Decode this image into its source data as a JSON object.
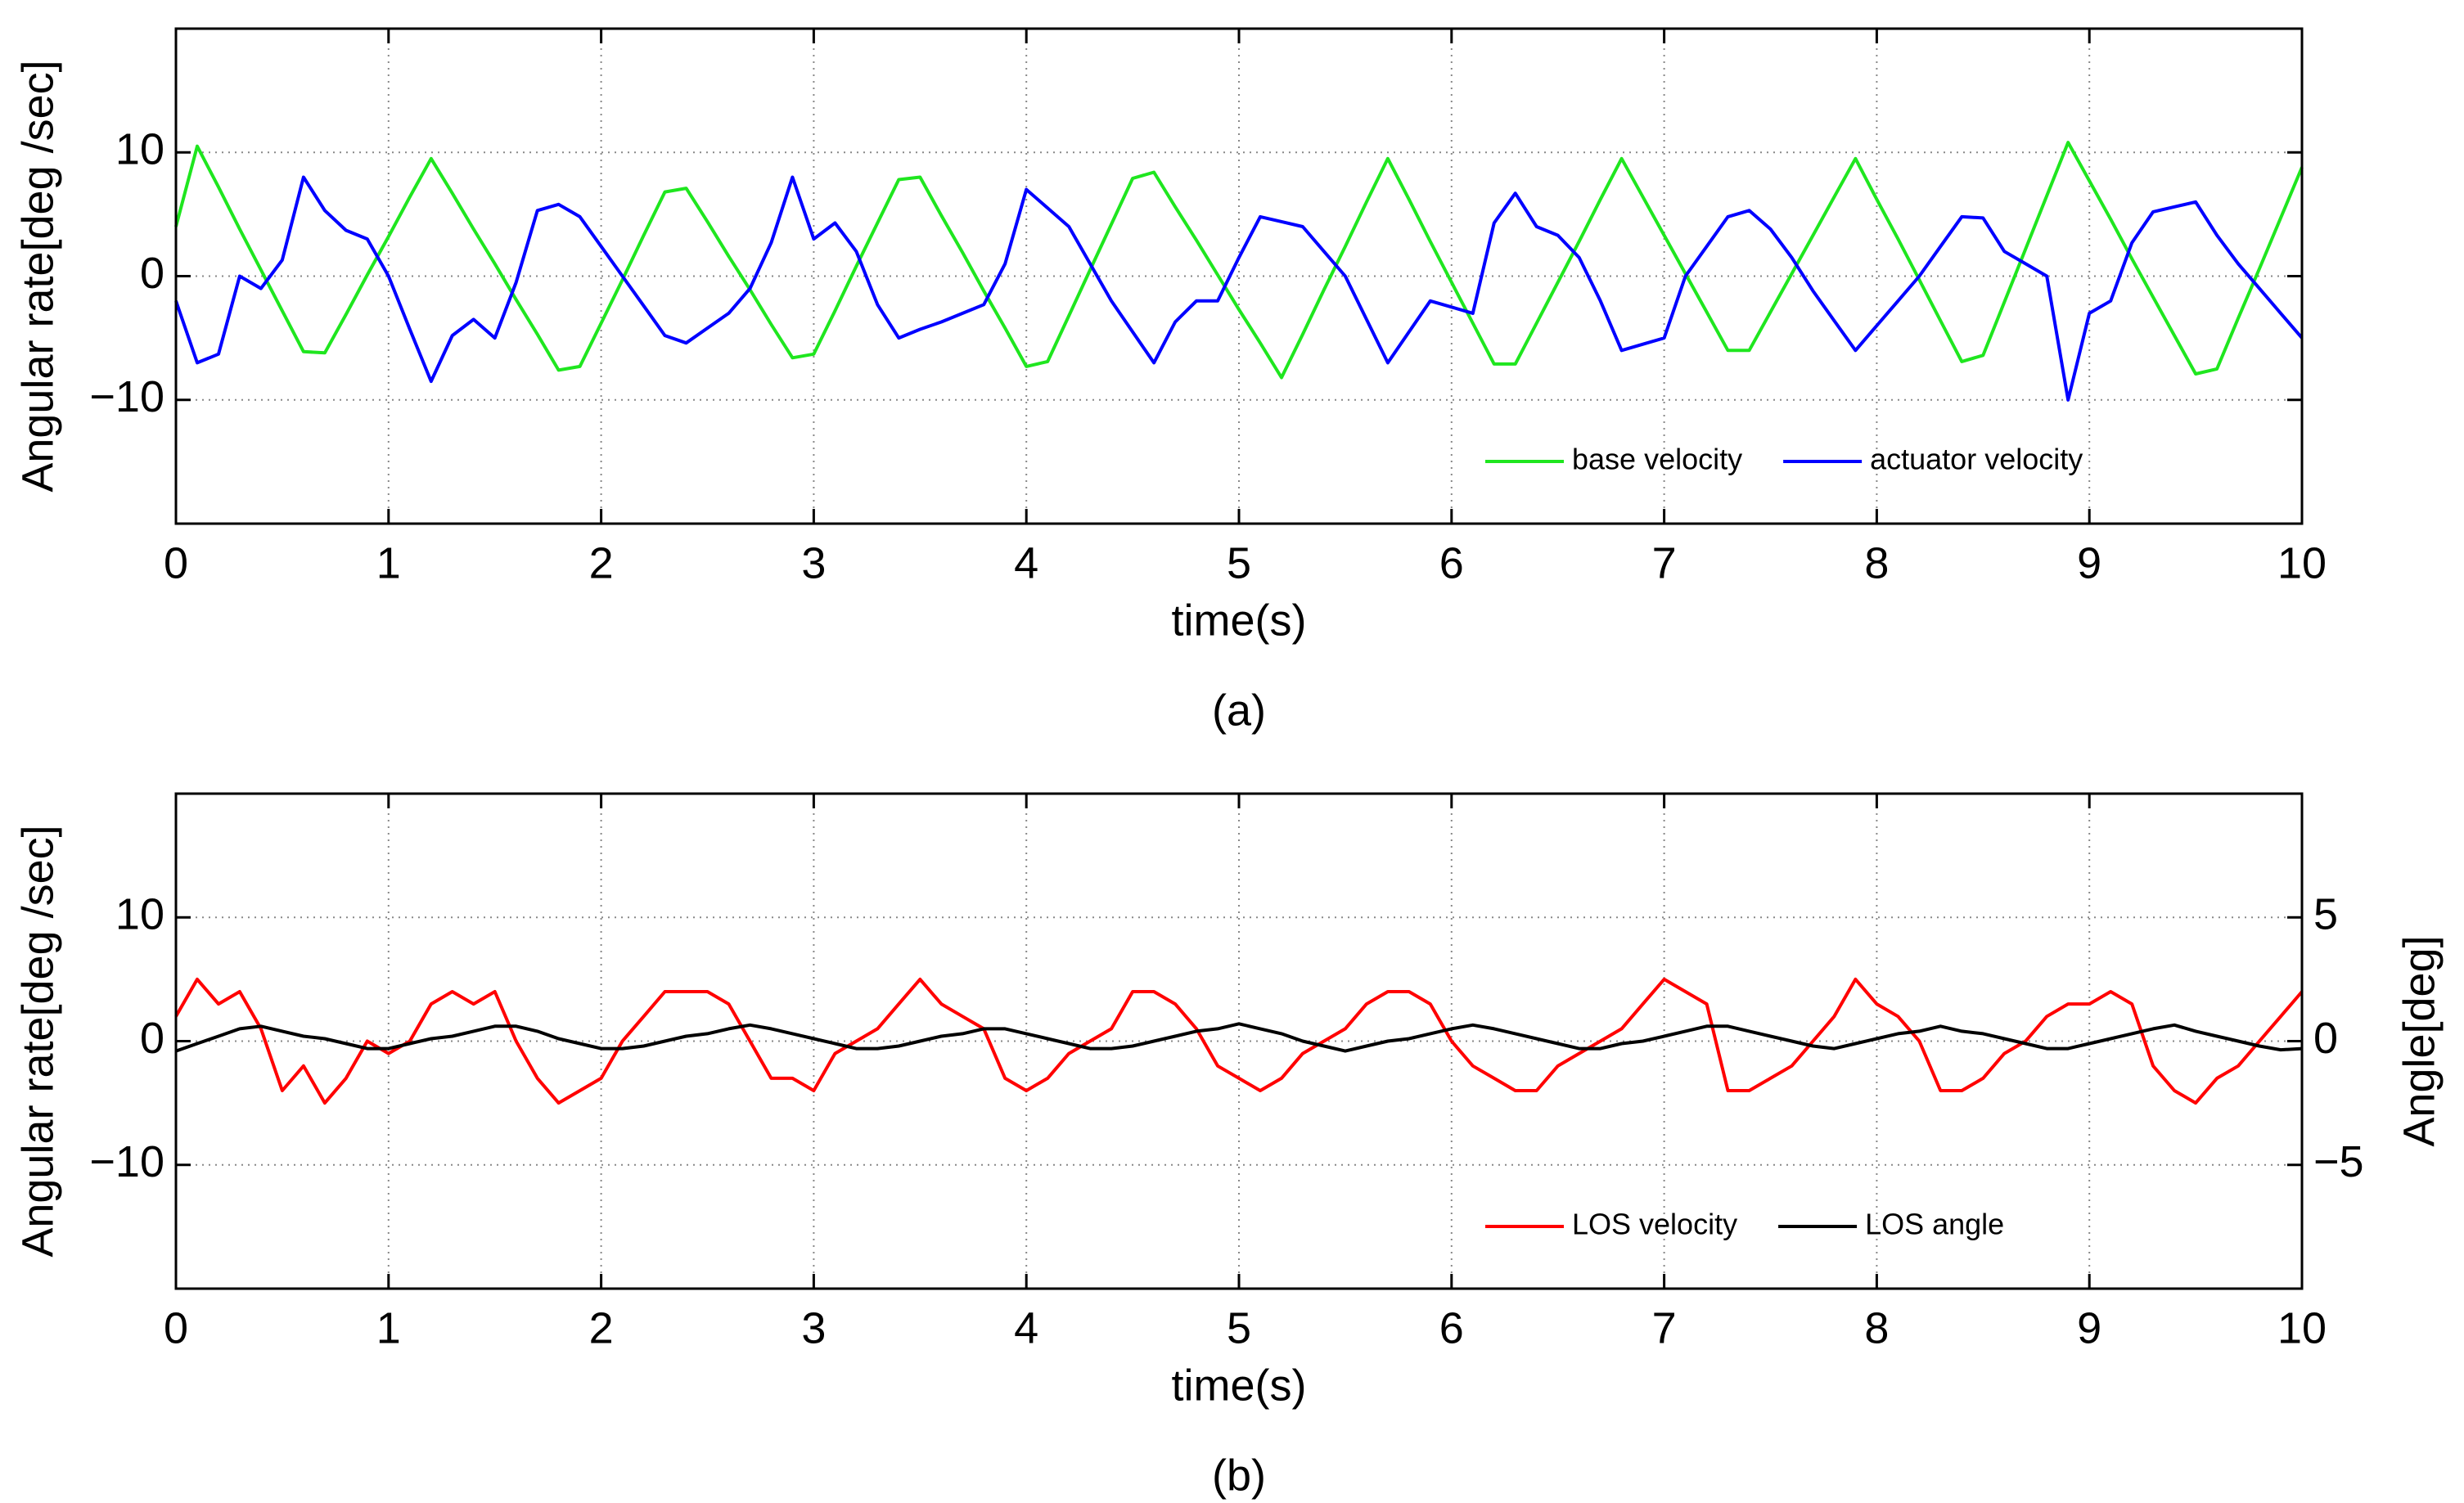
{
  "chart_data": [
    {
      "type": "line",
      "caption": "(a)",
      "xlabel": "time(s)",
      "ylabel": "Angular rate[deg /sec]",
      "xlim": [
        0,
        10
      ],
      "xticks": [
        0,
        1,
        2,
        3,
        4,
        5,
        6,
        7,
        8,
        9,
        10
      ],
      "ylim": [
        -20,
        20
      ],
      "yticks": [
        {
          "value": -10,
          "label": "−10"
        },
        0,
        10
      ],
      "grid": true,
      "legend": "lower right",
      "x": [
        0,
        0.1,
        0.2,
        0.3,
        0.4,
        0.5,
        0.6,
        0.7,
        0.8,
        0.9,
        1,
        1.1,
        1.2,
        1.3,
        1.4,
        1.5,
        1.6,
        1.7,
        1.8,
        1.9,
        2,
        2.1,
        2.2,
        2.3,
        2.4,
        2.5,
        2.6,
        2.7,
        2.8,
        2.9,
        3,
        3.1,
        3.2,
        3.3,
        3.4,
        3.5,
        3.6,
        3.7,
        3.8,
        3.9,
        4,
        4.1,
        4.2,
        4.3,
        4.4,
        4.5,
        4.6,
        4.7,
        4.8,
        4.9,
        5,
        5.1,
        5.2,
        5.3,
        5.4,
        5.5,
        5.6,
        5.7,
        5.8,
        5.9,
        6,
        6.1,
        6.2,
        6.3,
        6.4,
        6.5,
        6.6,
        6.7,
        6.8,
        6.9,
        7,
        7.1,
        7.2,
        7.3,
        7.4,
        7.5,
        7.6,
        7.7,
        7.8,
        7.9,
        8,
        8.1,
        8.2,
        8.3,
        8.4,
        8.5,
        8.6,
        8.7,
        8.8,
        8.9,
        9,
        9.1,
        9.2,
        9.3,
        9.4,
        9.5,
        9.6,
        9.7,
        9.8,
        9.9,
        10
      ],
      "series": [
        {
          "name": "base velocity",
          "color": "#1fe61f",
          "values": [
            4,
            10.5,
            7.2,
            3.8,
            0.5,
            -2.8,
            -6.1,
            -6.2,
            -3.1,
            0.1,
            3.2,
            6.4,
            9.5,
            6.7,
            3.8,
            1.0,
            -1.9,
            -4.7,
            -7.6,
            -7.3,
            -3.8,
            -0.3,
            3.3,
            6.8,
            7.1,
            4.4,
            1.6,
            -1.1,
            -3.9,
            -6.6,
            -6.3,
            -2.8,
            0.8,
            4.3,
            7.8,
            8.0,
            4.9,
            1.9,
            -1.2,
            -4.2,
            -7.3,
            -6.9,
            -3.2,
            0.5,
            4.2,
            7.9,
            8.4,
            5.6,
            2.9,
            0.1,
            -2.7,
            -5.4,
            -8.2,
            -4.7,
            -1.1,
            2.4,
            6.0,
            9.5,
            6.2,
            2.8,
            -0.5,
            -3.8,
            -7.1,
            -7.1,
            -3.8,
            -0.5,
            2.8,
            6.2,
            9.5,
            6.4,
            3.3,
            0.2,
            -2.9,
            -6.0,
            -6.0,
            -2.9,
            0.2,
            3.3,
            6.4,
            9.5,
            6.2,
            3.0,
            -0.3,
            -3.6,
            -6.9,
            -6.4,
            -2.1,
            2.2,
            6.5,
            10.8,
            7.7,
            4.6,
            1.4,
            -1.7,
            -4.8,
            -7.9,
            -7.5,
            -3.4,
            0.6,
            4.7,
            8.8
          ]
        },
        {
          "name": "actuator velocity",
          "color": "#0000ff",
          "values": [
            -2,
            -7,
            -6.3,
            0,
            -1,
            1.3,
            8,
            5.3,
            3.7,
            3,
            0,
            -4.3,
            -8.5,
            -4.8,
            -3.5,
            -5,
            -0.5,
            5.3,
            5.8,
            4.8,
            2.4,
            0,
            -2.4,
            -4.8,
            -5.4,
            -4.2,
            -3,
            -1,
            2.7,
            8,
            3,
            4.3,
            2,
            -2.3,
            -5,
            -4.3,
            -3.7,
            -3,
            -2.3,
            1,
            7,
            5.5,
            4,
            1,
            -2,
            -4.5,
            -7,
            -3.7,
            -2,
            -2,
            1.5,
            4.8,
            4.4,
            4,
            2,
            0,
            -3.5,
            -7,
            -4.5,
            -2,
            -2.5,
            -3,
            4.3,
            6.7,
            4,
            3.3,
            1.5,
            -2,
            -6,
            -5.5,
            -5,
            0,
            2.4,
            4.8,
            5.3,
            3.8,
            1.5,
            -1.2,
            -3.6,
            -6,
            -4,
            -2,
            0,
            2.4,
            4.8,
            4.7,
            2,
            1,
            0,
            -10,
            -3,
            -2,
            2.7,
            5.2,
            5.6,
            6,
            3.3,
            1,
            -1,
            -3,
            -5
          ]
        }
      ]
    },
    {
      "type": "line",
      "caption": "(b)",
      "xlabel": "time(s)",
      "ylabel": "Angular rate[deg /sec]",
      "y2label": "Angle[deg]",
      "xlim": [
        0,
        10
      ],
      "xticks": [
        0,
        1,
        2,
        3,
        4,
        5,
        6,
        7,
        8,
        9,
        10
      ],
      "ylim": [
        -20,
        20
      ],
      "yticks": [
        {
          "value": -10,
          "label": "−10"
        },
        0,
        10
      ],
      "y2lim": [
        -10,
        10
      ],
      "y2ticks": [
        {
          "value": -5,
          "label": "−5"
        },
        0,
        5
      ],
      "grid": true,
      "legend": "lower right",
      "x": [
        0,
        0.1,
        0.2,
        0.3,
        0.4,
        0.5,
        0.6,
        0.7,
        0.8,
        0.9,
        1,
        1.1,
        1.2,
        1.3,
        1.4,
        1.5,
        1.6,
        1.7,
        1.8,
        1.9,
        2,
        2.1,
        2.2,
        2.3,
        2.4,
        2.5,
        2.6,
        2.7,
        2.8,
        2.9,
        3,
        3.1,
        3.2,
        3.3,
        3.4,
        3.5,
        3.6,
        3.7,
        3.8,
        3.9,
        4,
        4.1,
        4.2,
        4.3,
        4.4,
        4.5,
        4.6,
        4.7,
        4.8,
        4.9,
        5,
        5.1,
        5.2,
        5.3,
        5.4,
        5.5,
        5.6,
        5.7,
        5.8,
        5.9,
        6,
        6.1,
        6.2,
        6.3,
        6.4,
        6.5,
        6.6,
        6.7,
        6.8,
        6.9,
        7,
        7.1,
        7.2,
        7.3,
        7.4,
        7.5,
        7.6,
        7.7,
        7.8,
        7.9,
        8,
        8.1,
        8.2,
        8.3,
        8.4,
        8.5,
        8.6,
        8.7,
        8.8,
        8.9,
        9,
        9.1,
        9.2,
        9.3,
        9.4,
        9.5,
        9.6,
        9.7,
        9.8,
        9.9,
        10
      ],
      "series": [
        {
          "name": "LOS velocity",
          "color": "#ff0000",
          "values": [
            2,
            5,
            3,
            4,
            1,
            -4,
            -2,
            -5,
            -3,
            0,
            -1,
            0,
            3,
            4,
            3,
            4,
            0,
            -3,
            -5,
            -4,
            -3,
            0,
            2,
            4,
            4,
            4,
            3,
            0,
            -3,
            -3,
            -4,
            -1,
            0,
            1,
            3,
            5,
            3,
            2,
            1,
            -3,
            -4,
            -3,
            -1,
            0,
            1,
            4,
            4,
            3,
            1,
            -2,
            -3,
            -4,
            -3,
            -1,
            0,
            1,
            3,
            4,
            4,
            3,
            0,
            -2,
            -3,
            -4,
            -4,
            -2,
            -1,
            0,
            1,
            3,
            5,
            4,
            3,
            -4,
            -4,
            -3,
            -2,
            0,
            2,
            5,
            3,
            2,
            0,
            -4,
            -4,
            -3,
            -1,
            0,
            2,
            3,
            3,
            4,
            3,
            -2,
            -4,
            -5,
            -3,
            -2,
            0,
            2,
            4
          ]
        },
        {
          "name": "LOS angle",
          "color": "#000000",
          "axis": "y2",
          "values": [
            -0.4,
            -0.1,
            0.2,
            0.5,
            0.6,
            0.4,
            0.2,
            0.1,
            -0.1,
            -0.3,
            -0.3,
            -0.1,
            0.1,
            0.2,
            0.4,
            0.6,
            0.6,
            0.4,
            0.1,
            -0.1,
            -0.3,
            -0.3,
            -0.2,
            0,
            0.2,
            0.3,
            0.5,
            0.65,
            0.5,
            0.3,
            0.1,
            -0.1,
            -0.3,
            -0.3,
            -0.2,
            0,
            0.2,
            0.3,
            0.5,
            0.5,
            0.3,
            0.1,
            -0.1,
            -0.3,
            -0.3,
            -0.2,
            0,
            0.2,
            0.4,
            0.5,
            0.7,
            0.5,
            0.3,
            0,
            -0.2,
            -0.4,
            -0.2,
            0,
            0.1,
            0.3,
            0.5,
            0.65,
            0.5,
            0.3,
            0.1,
            -0.1,
            -0.3,
            -0.3,
            -0.1,
            0,
            0.2,
            0.4,
            0.6,
            0.6,
            0.4,
            0.2,
            0,
            -0.2,
            -0.3,
            -0.1,
            0.1,
            0.3,
            0.4,
            0.6,
            0.4,
            0.3,
            0.1,
            -0.1,
            -0.3,
            -0.3,
            -0.1,
            0.1,
            0.3,
            0.5,
            0.65,
            0.4,
            0.2,
            0,
            -0.2,
            -0.35,
            -0.3
          ]
        }
      ]
    }
  ]
}
